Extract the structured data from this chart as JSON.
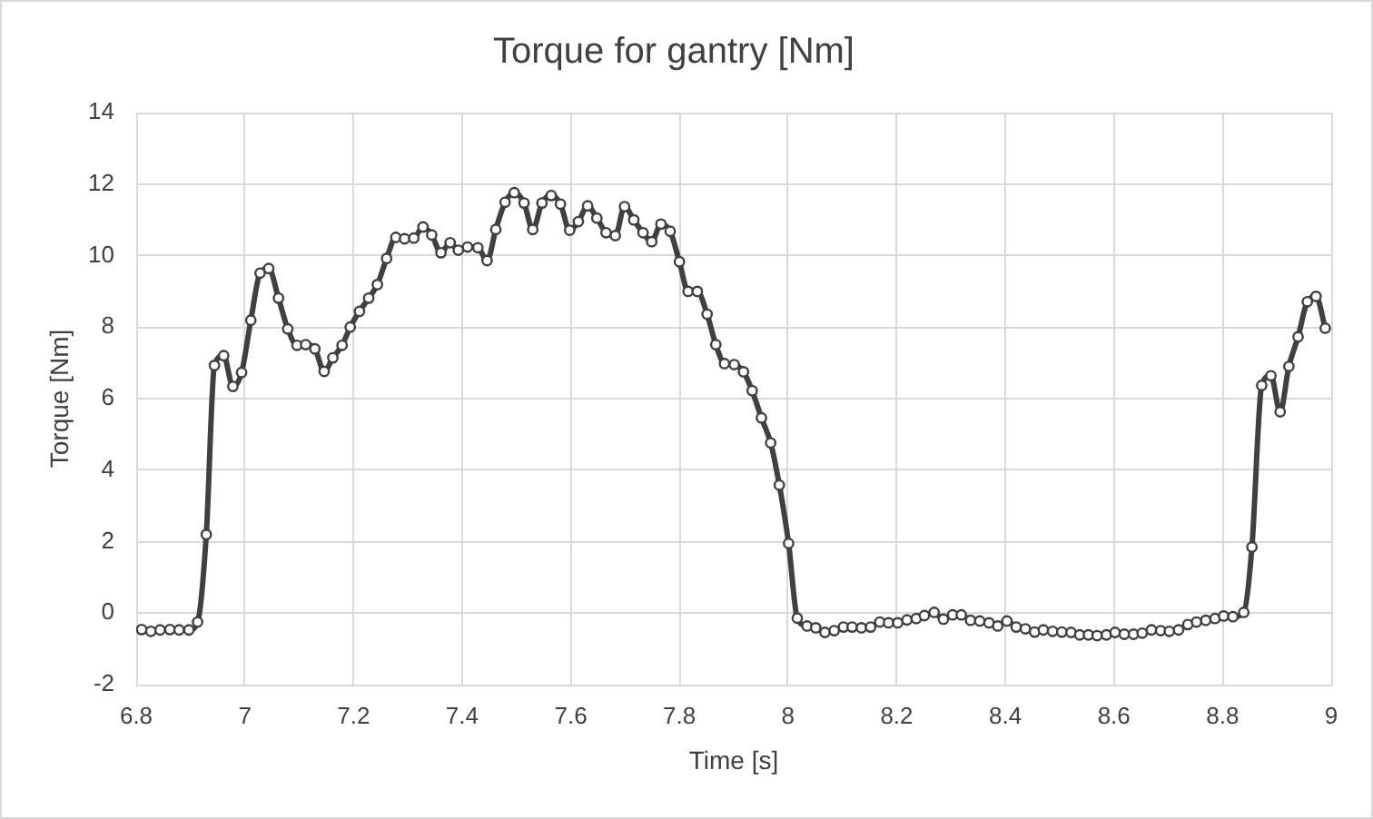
{
  "chart_data": {
    "type": "line",
    "title": "Torque for gantry [Nm]",
    "xlabel": "Time [s]",
    "ylabel": "Torque [Nm]",
    "x": [
      6.81,
      6.827,
      6.844,
      6.862,
      6.879,
      6.897,
      6.913,
      6.929,
      6.944,
      6.961,
      6.978,
      6.994,
      7.011,
      7.028,
      7.044,
      7.062,
      7.079,
      7.096,
      7.112,
      7.129,
      7.146,
      7.162,
      7.179,
      7.194,
      7.211,
      7.228,
      7.244,
      7.261,
      7.278,
      7.294,
      7.311,
      7.328,
      7.344,
      7.361,
      7.378,
      7.393,
      7.41,
      7.429,
      7.446,
      7.462,
      7.479,
      7.496,
      7.514,
      7.53,
      7.547,
      7.564,
      7.581,
      7.598,
      7.614,
      7.631,
      7.648,
      7.665,
      7.682,
      7.699,
      7.716,
      7.733,
      7.749,
      7.766,
      7.783,
      7.8,
      7.816,
      7.833,
      7.851,
      7.867,
      7.883,
      7.901,
      7.918,
      7.934,
      7.951,
      7.968,
      7.984,
      8.001,
      8.017,
      8.035,
      8.051,
      8.068,
      8.085,
      8.102,
      8.118,
      8.135,
      8.152,
      8.169,
      8.185,
      8.202,
      8.219,
      8.236,
      8.251,
      8.269,
      8.286,
      8.303,
      8.319,
      8.336,
      8.353,
      8.37,
      8.386,
      8.403,
      8.42,
      8.437,
      8.454,
      8.47,
      8.487,
      8.504,
      8.521,
      8.537,
      8.553,
      8.569,
      8.586,
      8.602,
      8.619,
      8.636,
      8.652,
      8.669,
      8.686,
      8.702,
      8.719,
      8.736,
      8.752,
      8.769,
      8.786,
      8.802,
      8.819,
      8.839,
      8.854,
      8.872,
      8.889,
      8.906,
      8.922,
      8.939,
      8.956,
      8.972,
      8.989
    ],
    "series": [
      {
        "color": "#404040",
        "values": [
          -0.46,
          -0.51,
          -0.47,
          -0.46,
          -0.47,
          -0.47,
          -0.25,
          2.2,
          6.93,
          7.2,
          6.34,
          6.73,
          8.19,
          9.51,
          9.64,
          8.81,
          7.95,
          7.49,
          7.51,
          7.39,
          6.76,
          7.14,
          7.49,
          8.0,
          8.44,
          8.81,
          9.19,
          9.92,
          10.51,
          10.47,
          10.49,
          10.8,
          10.58,
          10.08,
          10.36,
          10.15,
          10.24,
          10.22,
          9.86,
          10.73,
          11.49,
          11.76,
          11.47,
          10.73,
          11.47,
          11.68,
          11.44,
          10.71,
          10.95,
          11.39,
          11.05,
          10.64,
          10.56,
          11.37,
          11.0,
          10.64,
          10.39,
          10.88,
          10.68,
          9.83,
          9.0,
          9.0,
          8.36,
          7.51,
          6.98,
          6.95,
          6.75,
          6.22,
          5.46,
          4.76,
          3.58,
          1.95,
          -0.14,
          -0.36,
          -0.41,
          -0.54,
          -0.49,
          -0.39,
          -0.39,
          -0.41,
          -0.39,
          -0.25,
          -0.27,
          -0.27,
          -0.19,
          -0.15,
          -0.07,
          0.02,
          -0.17,
          -0.05,
          -0.05,
          -0.2,
          -0.22,
          -0.27,
          -0.36,
          -0.22,
          -0.39,
          -0.44,
          -0.53,
          -0.47,
          -0.51,
          -0.53,
          -0.54,
          -0.61,
          -0.61,
          -0.63,
          -0.61,
          -0.54,
          -0.59,
          -0.59,
          -0.56,
          -0.47,
          -0.49,
          -0.51,
          -0.47,
          -0.32,
          -0.25,
          -0.2,
          -0.15,
          -0.08,
          -0.1,
          0.02,
          1.85,
          6.37,
          6.64,
          5.63,
          6.9,
          7.73,
          8.71,
          8.86,
          7.97
        ]
      }
    ],
    "xlim": [
      6.8,
      9
    ],
    "xticks": [
      6.8,
      7,
      7.2,
      7.4,
      7.6,
      7.8,
      8,
      8.2,
      8.4,
      8.6,
      8.8,
      9
    ],
    "ylim": [
      -2,
      14
    ],
    "yticks": [
      -2,
      0,
      2,
      4,
      6,
      8,
      10,
      12,
      14
    ],
    "grid": true,
    "legend": false,
    "marker": "circle",
    "line_style": "solid"
  }
}
